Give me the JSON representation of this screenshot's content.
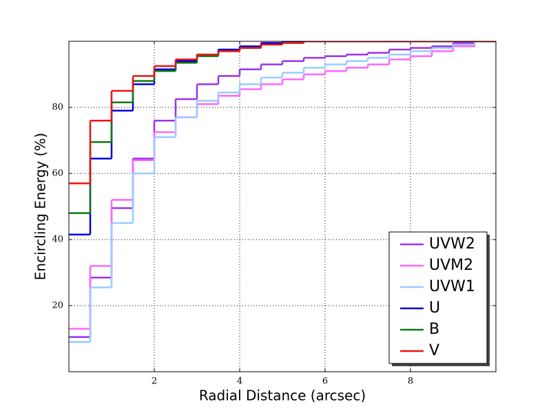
{
  "chart_data": {
    "type": "step",
    "xlabel": "Radial Distance (arcsec)",
    "ylabel": "Encircling Energy (%)",
    "x": [
      0,
      0.5,
      1,
      1.5,
      2,
      2.5,
      3,
      3.5,
      4,
      4.5,
      5,
      5.5,
      6,
      6.5,
      7,
      7.5,
      8,
      8.5,
      9,
      9.5
    ],
    "xlim": [
      0,
      10
    ],
    "xticks": [
      2,
      4,
      6,
      8
    ],
    "ylim": [
      0,
      100
    ],
    "yticks": [
      20,
      40,
      60,
      80
    ],
    "grid": true,
    "legend": "lower right",
    "series": [
      {
        "name": "UVW2",
        "color": "#9933ee",
        "values": [
          10.5,
          28.5,
          49.5,
          64.5,
          76,
          82.5,
          87,
          89.5,
          91.5,
          93,
          94,
          95,
          95.5,
          96,
          96.5,
          97.5,
          98,
          98.5,
          99.5,
          100
        ]
      },
      {
        "name": "UVM2",
        "color": "#ff66ff",
        "values": [
          13,
          32,
          52,
          64,
          72.5,
          77,
          81,
          83.5,
          85.5,
          87,
          88.5,
          90,
          91,
          92,
          93,
          94.5,
          95.5,
          97,
          98.5,
          100
        ]
      },
      {
        "name": "UVW1",
        "color": "#99ccff",
        "values": [
          9,
          25.5,
          45,
          60,
          71,
          77,
          82,
          84.5,
          87,
          89,
          90.5,
          92,
          93,
          94,
          95,
          96,
          97,
          98,
          99,
          100
        ]
      },
      {
        "name": "U",
        "color": "#0000dd",
        "values": [
          41.5,
          64.5,
          79,
          87,
          91.5,
          94,
          96,
          97.5,
          98.5,
          99.5,
          100,
          100,
          100,
          100,
          100,
          100,
          100,
          100,
          100,
          100
        ]
      },
      {
        "name": "B",
        "color": "#117711",
        "values": [
          48,
          69.5,
          81.5,
          88,
          91,
          93.5,
          95.5,
          97,
          98,
          99,
          99.5,
          100,
          100,
          100,
          100,
          100,
          100,
          100,
          100,
          100
        ]
      },
      {
        "name": "V",
        "color": "#ee1111",
        "values": [
          57,
          76,
          85,
          89.5,
          92.5,
          94.5,
          96,
          97,
          98,
          99,
          99.5,
          100,
          100,
          100,
          100,
          100,
          100,
          100,
          100,
          100
        ]
      }
    ]
  }
}
